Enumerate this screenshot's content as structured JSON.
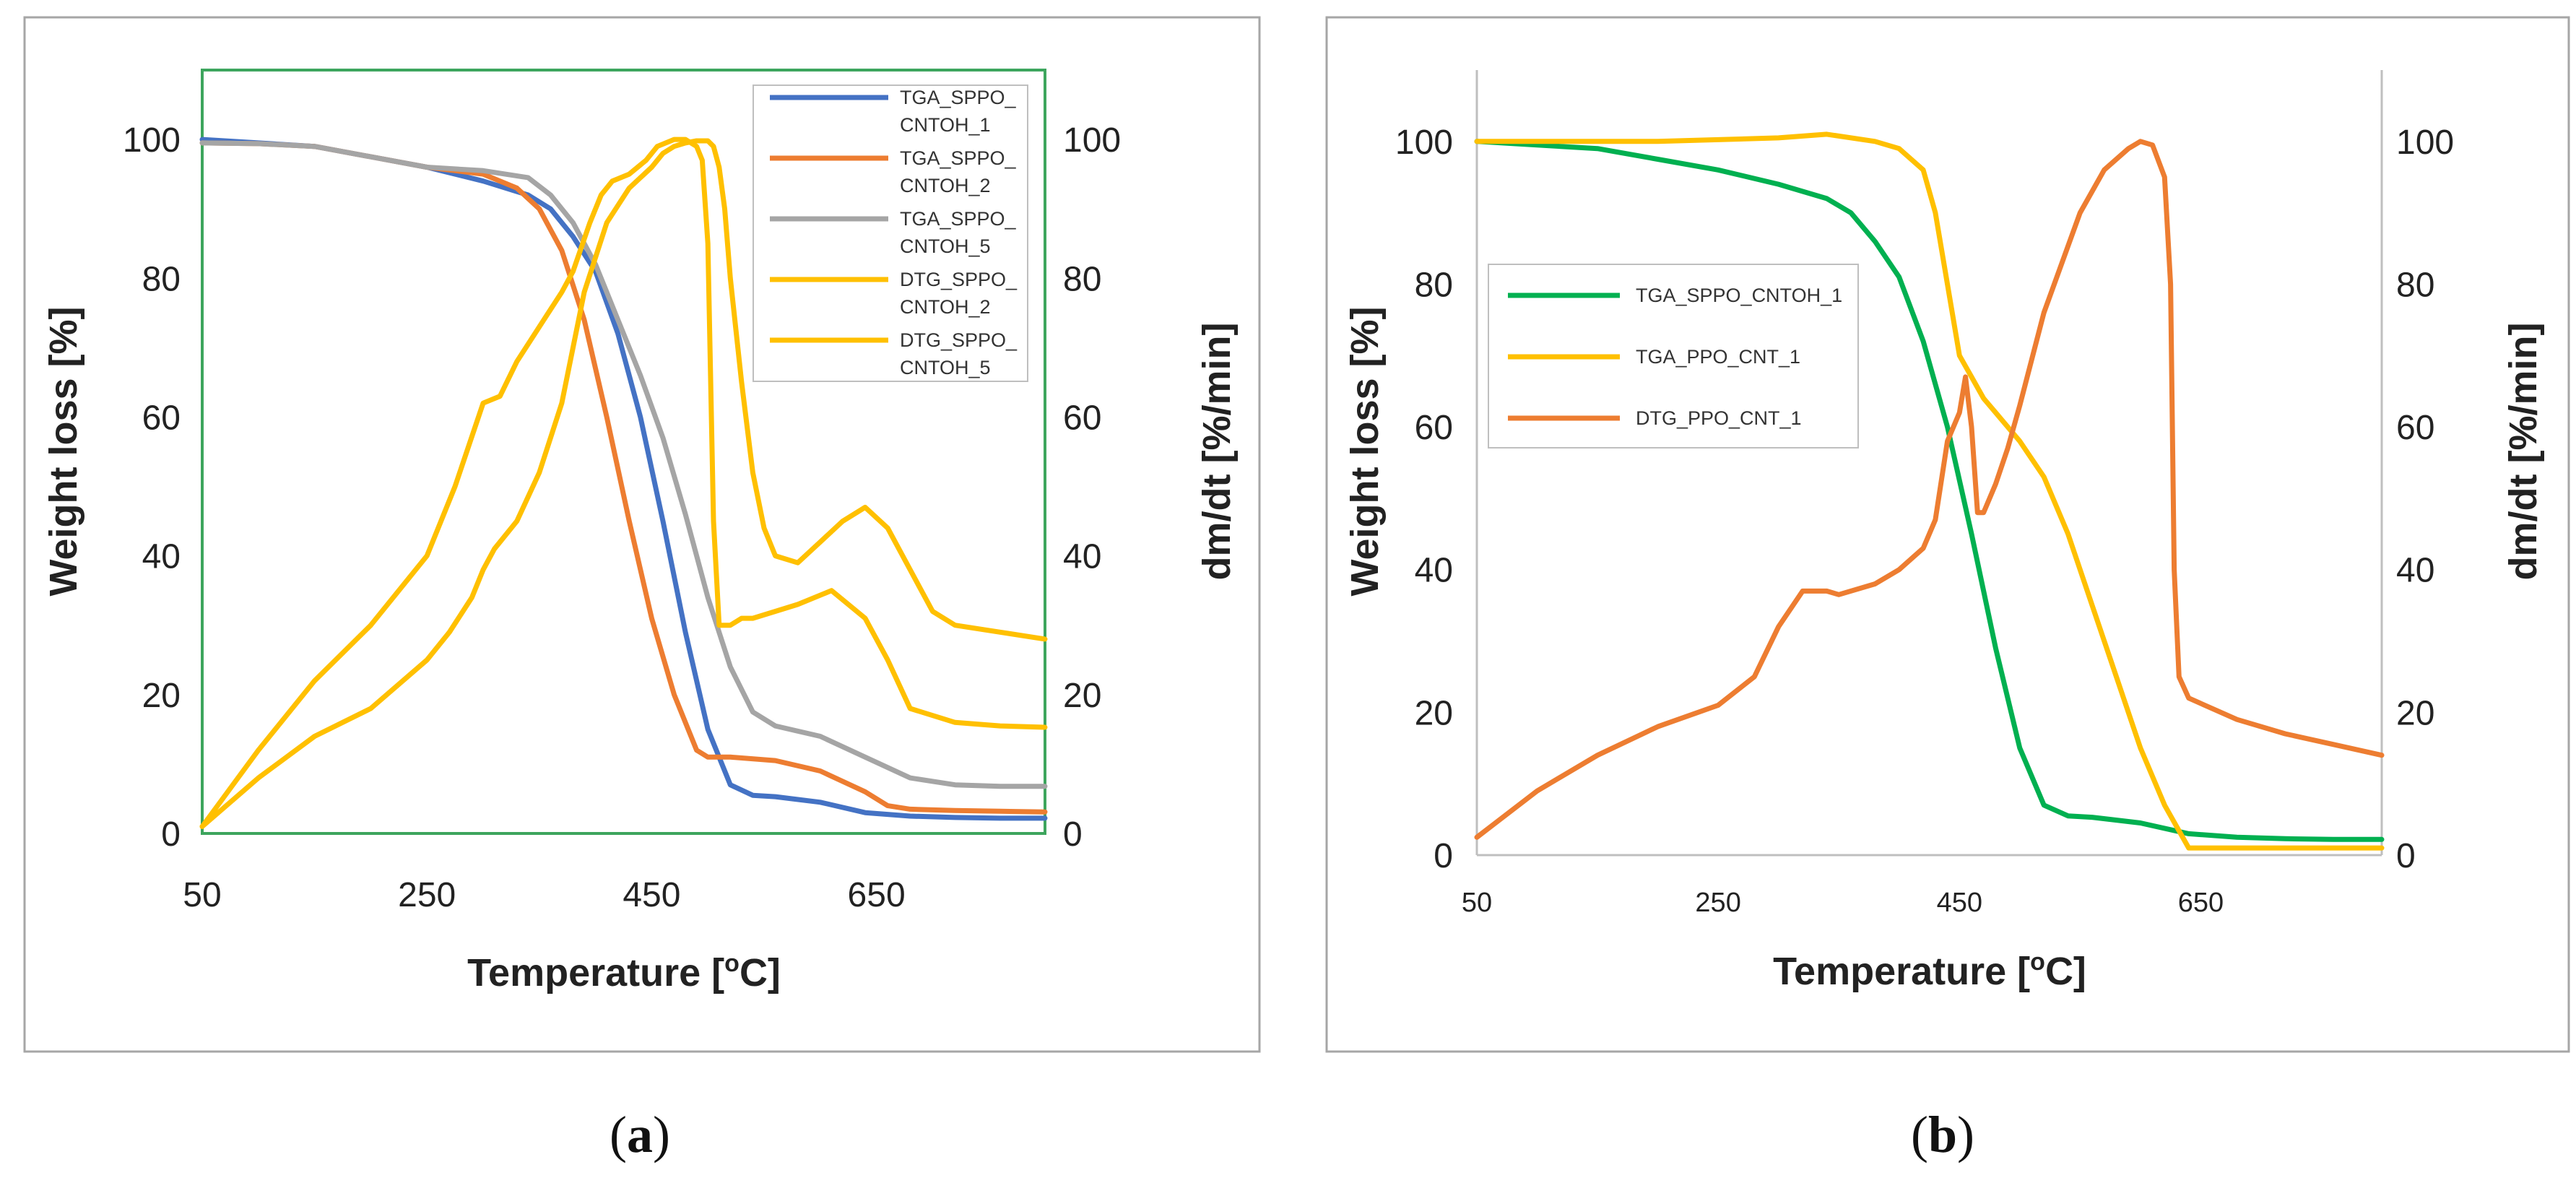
{
  "colors": {
    "blue": "#4472C4",
    "orange": "#ED7D31",
    "gray": "#A5A5A5",
    "yellow": "#FFC000",
    "green": "#00B050",
    "frame": "#A6A6A6",
    "plot_border_a": "#3DA55D"
  },
  "chart_data": [
    {
      "panel": "a",
      "type": "line",
      "panel_label": {
        "open": "(",
        "letter": "a",
        "close": ")"
      },
      "xlabel": {
        "main": "Temperature [",
        "sup": "o",
        "unit": "C]"
      },
      "ylabel": "Weight loss [%]",
      "y2label": "dm/dt [%/min]",
      "xlim": [
        50,
        800
      ],
      "ylim": [
        0,
        110
      ],
      "y2lim": [
        0,
        110
      ],
      "xticks": [
        50,
        250,
        450,
        650
      ],
      "yticks": [
        0,
        20,
        40,
        60,
        80,
        100
      ],
      "y2ticks": [
        0,
        20,
        40,
        60,
        80,
        100
      ],
      "legend_position": "top-right",
      "series": [
        {
          "name": "TGA_SPPO_CNTOH_1",
          "legend": [
            "TGA_SPPO_",
            "CNTOH_1"
          ],
          "color": "#4472C4",
          "axis": "left",
          "x": [
            50,
            100,
            150,
            200,
            250,
            300,
            340,
            360,
            380,
            400,
            420,
            440,
            460,
            480,
            500,
            520,
            540,
            560,
            600,
            640,
            680,
            720,
            760,
            800
          ],
          "y": [
            100,
            99.5,
            99,
            97.5,
            96,
            94,
            92,
            90,
            86,
            81,
            72,
            60,
            45,
            29,
            15,
            7,
            5.5,
            5.3,
            4.5,
            3,
            2.5,
            2.3,
            2.2,
            2.2
          ]
        },
        {
          "name": "TGA_SPPO_CNTOH_2",
          "legend": [
            "TGA_SPPO_",
            "CNTOH_2"
          ],
          "color": "#ED7D31",
          "axis": "left",
          "x": [
            50,
            100,
            150,
            200,
            250,
            300,
            330,
            350,
            370,
            390,
            410,
            430,
            450,
            470,
            490,
            500,
            520,
            560,
            600,
            640,
            660,
            680,
            720,
            760,
            800
          ],
          "y": [
            99.5,
            99.4,
            99,
            97.5,
            96,
            95,
            93,
            90,
            84,
            74,
            60,
            45,
            31,
            20,
            12,
            11,
            11,
            10.5,
            9,
            6,
            4,
            3.5,
            3.3,
            3.2,
            3.1
          ]
        },
        {
          "name": "TGA_SPPO_CNTOH_5",
          "legend": [
            "TGA_SPPO_",
            "CNTOH_5"
          ],
          "color": "#A5A5A5",
          "axis": "left",
          "x": [
            50,
            100,
            150,
            200,
            250,
            300,
            340,
            360,
            380,
            400,
            420,
            440,
            460,
            480,
            500,
            520,
            540,
            560,
            600,
            640,
            680,
            720,
            760,
            800
          ],
          "y": [
            99.5,
            99.4,
            99,
            97.5,
            96,
            95.5,
            94.5,
            92,
            88,
            82,
            74,
            66,
            57,
            46,
            34,
            24,
            17.5,
            15.5,
            14,
            11,
            8,
            7,
            6.8,
            6.8
          ]
        },
        {
          "name": "DTG_SPPO_CNTOH_2",
          "legend": [
            "DTG_SPPO_",
            "CNTOH_2"
          ],
          "color": "#FFC000",
          "axis": "right",
          "x": [
            50,
            100,
            150,
            200,
            250,
            275,
            300,
            315,
            330,
            350,
            370,
            380,
            395,
            405,
            415,
            430,
            445,
            455,
            470,
            480,
            490,
            495,
            500,
            505,
            510,
            515,
            520,
            530,
            540,
            560,
            580,
            610,
            640,
            660,
            680,
            720,
            760,
            800
          ],
          "y": [
            1,
            12,
            22,
            30,
            40,
            50,
            62,
            63,
            68,
            73,
            78,
            81,
            88,
            92,
            94,
            95,
            97,
            99,
            100,
            100,
            99,
            97,
            85,
            45,
            30,
            30,
            30,
            31,
            31,
            32,
            33,
            35,
            31,
            25,
            18,
            16,
            15.5,
            15.3
          ]
        },
        {
          "name": "DTG_SPPO_CNTOH_5",
          "legend": [
            "DTG_SPPO_",
            "CNTOH_5"
          ],
          "color": "#FFC000",
          "axis": "right",
          "x": [
            50,
            100,
            150,
            200,
            250,
            270,
            290,
            300,
            310,
            330,
            350,
            370,
            390,
            410,
            430,
            450,
            460,
            470,
            480,
            490,
            500,
            505,
            510,
            515,
            520,
            530,
            540,
            550,
            560,
            580,
            600,
            620,
            640,
            660,
            680,
            700,
            720,
            760,
            800
          ],
          "y": [
            1,
            8,
            14,
            18,
            25,
            29,
            34,
            38,
            41,
            45,
            52,
            62,
            78,
            88,
            93,
            96,
            98,
            99,
            99.5,
            99.8,
            99.8,
            99,
            96,
            90,
            80,
            65,
            52,
            44,
            40,
            39,
            42,
            45,
            47,
            44,
            38,
            32,
            30,
            29,
            28
          ]
        }
      ]
    },
    {
      "panel": "b",
      "type": "line",
      "panel_label": {
        "open": "(",
        "letter": "b",
        "close": ")"
      },
      "xlabel": {
        "main": "Temperature [",
        "sup": "o",
        "unit": "C]"
      },
      "ylabel": "Weight loss [%]",
      "y2label": "dm/dt [%/min]",
      "xlim": [
        50,
        800
      ],
      "ylim": [
        0,
        110
      ],
      "y2lim": [
        0,
        110
      ],
      "xticks": [
        50,
        250,
        450,
        650
      ],
      "yticks": [
        0,
        20,
        40,
        60,
        80,
        100
      ],
      "y2ticks": [
        0,
        20,
        40,
        60,
        80,
        100
      ],
      "legend_position": "center-left",
      "series": [
        {
          "name": "TGA_SPPO_CNTOH_1",
          "color": "#00B050",
          "axis": "left",
          "x": [
            50,
            100,
            150,
            200,
            250,
            300,
            340,
            360,
            380,
            400,
            420,
            440,
            460,
            480,
            500,
            520,
            540,
            560,
            600,
            640,
            680,
            720,
            760,
            800
          ],
          "y": [
            100,
            99.5,
            99,
            97.5,
            96,
            94,
            92,
            90,
            86,
            81,
            72,
            60,
            45,
            29,
            15,
            7,
            5.5,
            5.3,
            4.5,
            3,
            2.5,
            2.3,
            2.2,
            2.2
          ]
        },
        {
          "name": "TGA_PPO_CNT_1",
          "color": "#FFC000",
          "axis": "left",
          "x": [
            50,
            100,
            200,
            300,
            340,
            380,
            400,
            420,
            430,
            440,
            450,
            460,
            470,
            480,
            500,
            520,
            540,
            560,
            580,
            600,
            620,
            640,
            680,
            720,
            760,
            800
          ],
          "y": [
            100,
            100,
            100,
            100.5,
            101,
            100,
            99,
            96,
            90,
            80,
            70,
            67,
            64,
            62,
            58,
            53,
            45,
            35,
            25,
            15,
            7,
            1,
            1,
            1,
            1,
            1
          ]
        },
        {
          "name": "DTG_PPO_CNT_1",
          "color": "#ED7D31",
          "axis": "right",
          "x": [
            50,
            100,
            150,
            200,
            250,
            280,
            300,
            320,
            340,
            350,
            380,
            400,
            420,
            430,
            440,
            450,
            455,
            460,
            465,
            470,
            480,
            490,
            500,
            520,
            550,
            570,
            590,
            600,
            610,
            620,
            625,
            628,
            632,
            640,
            680,
            720,
            760,
            800
          ],
          "y": [
            2.5,
            9,
            14,
            18,
            21,
            25,
            32,
            37,
            37,
            36.5,
            38,
            40,
            43,
            47,
            58,
            62,
            67,
            60,
            48,
            48,
            52,
            57,
            63,
            76,
            90,
            96,
            99,
            100,
            99.5,
            95,
            80,
            40,
            25,
            22,
            19,
            17,
            15.5,
            14
          ]
        }
      ]
    }
  ]
}
